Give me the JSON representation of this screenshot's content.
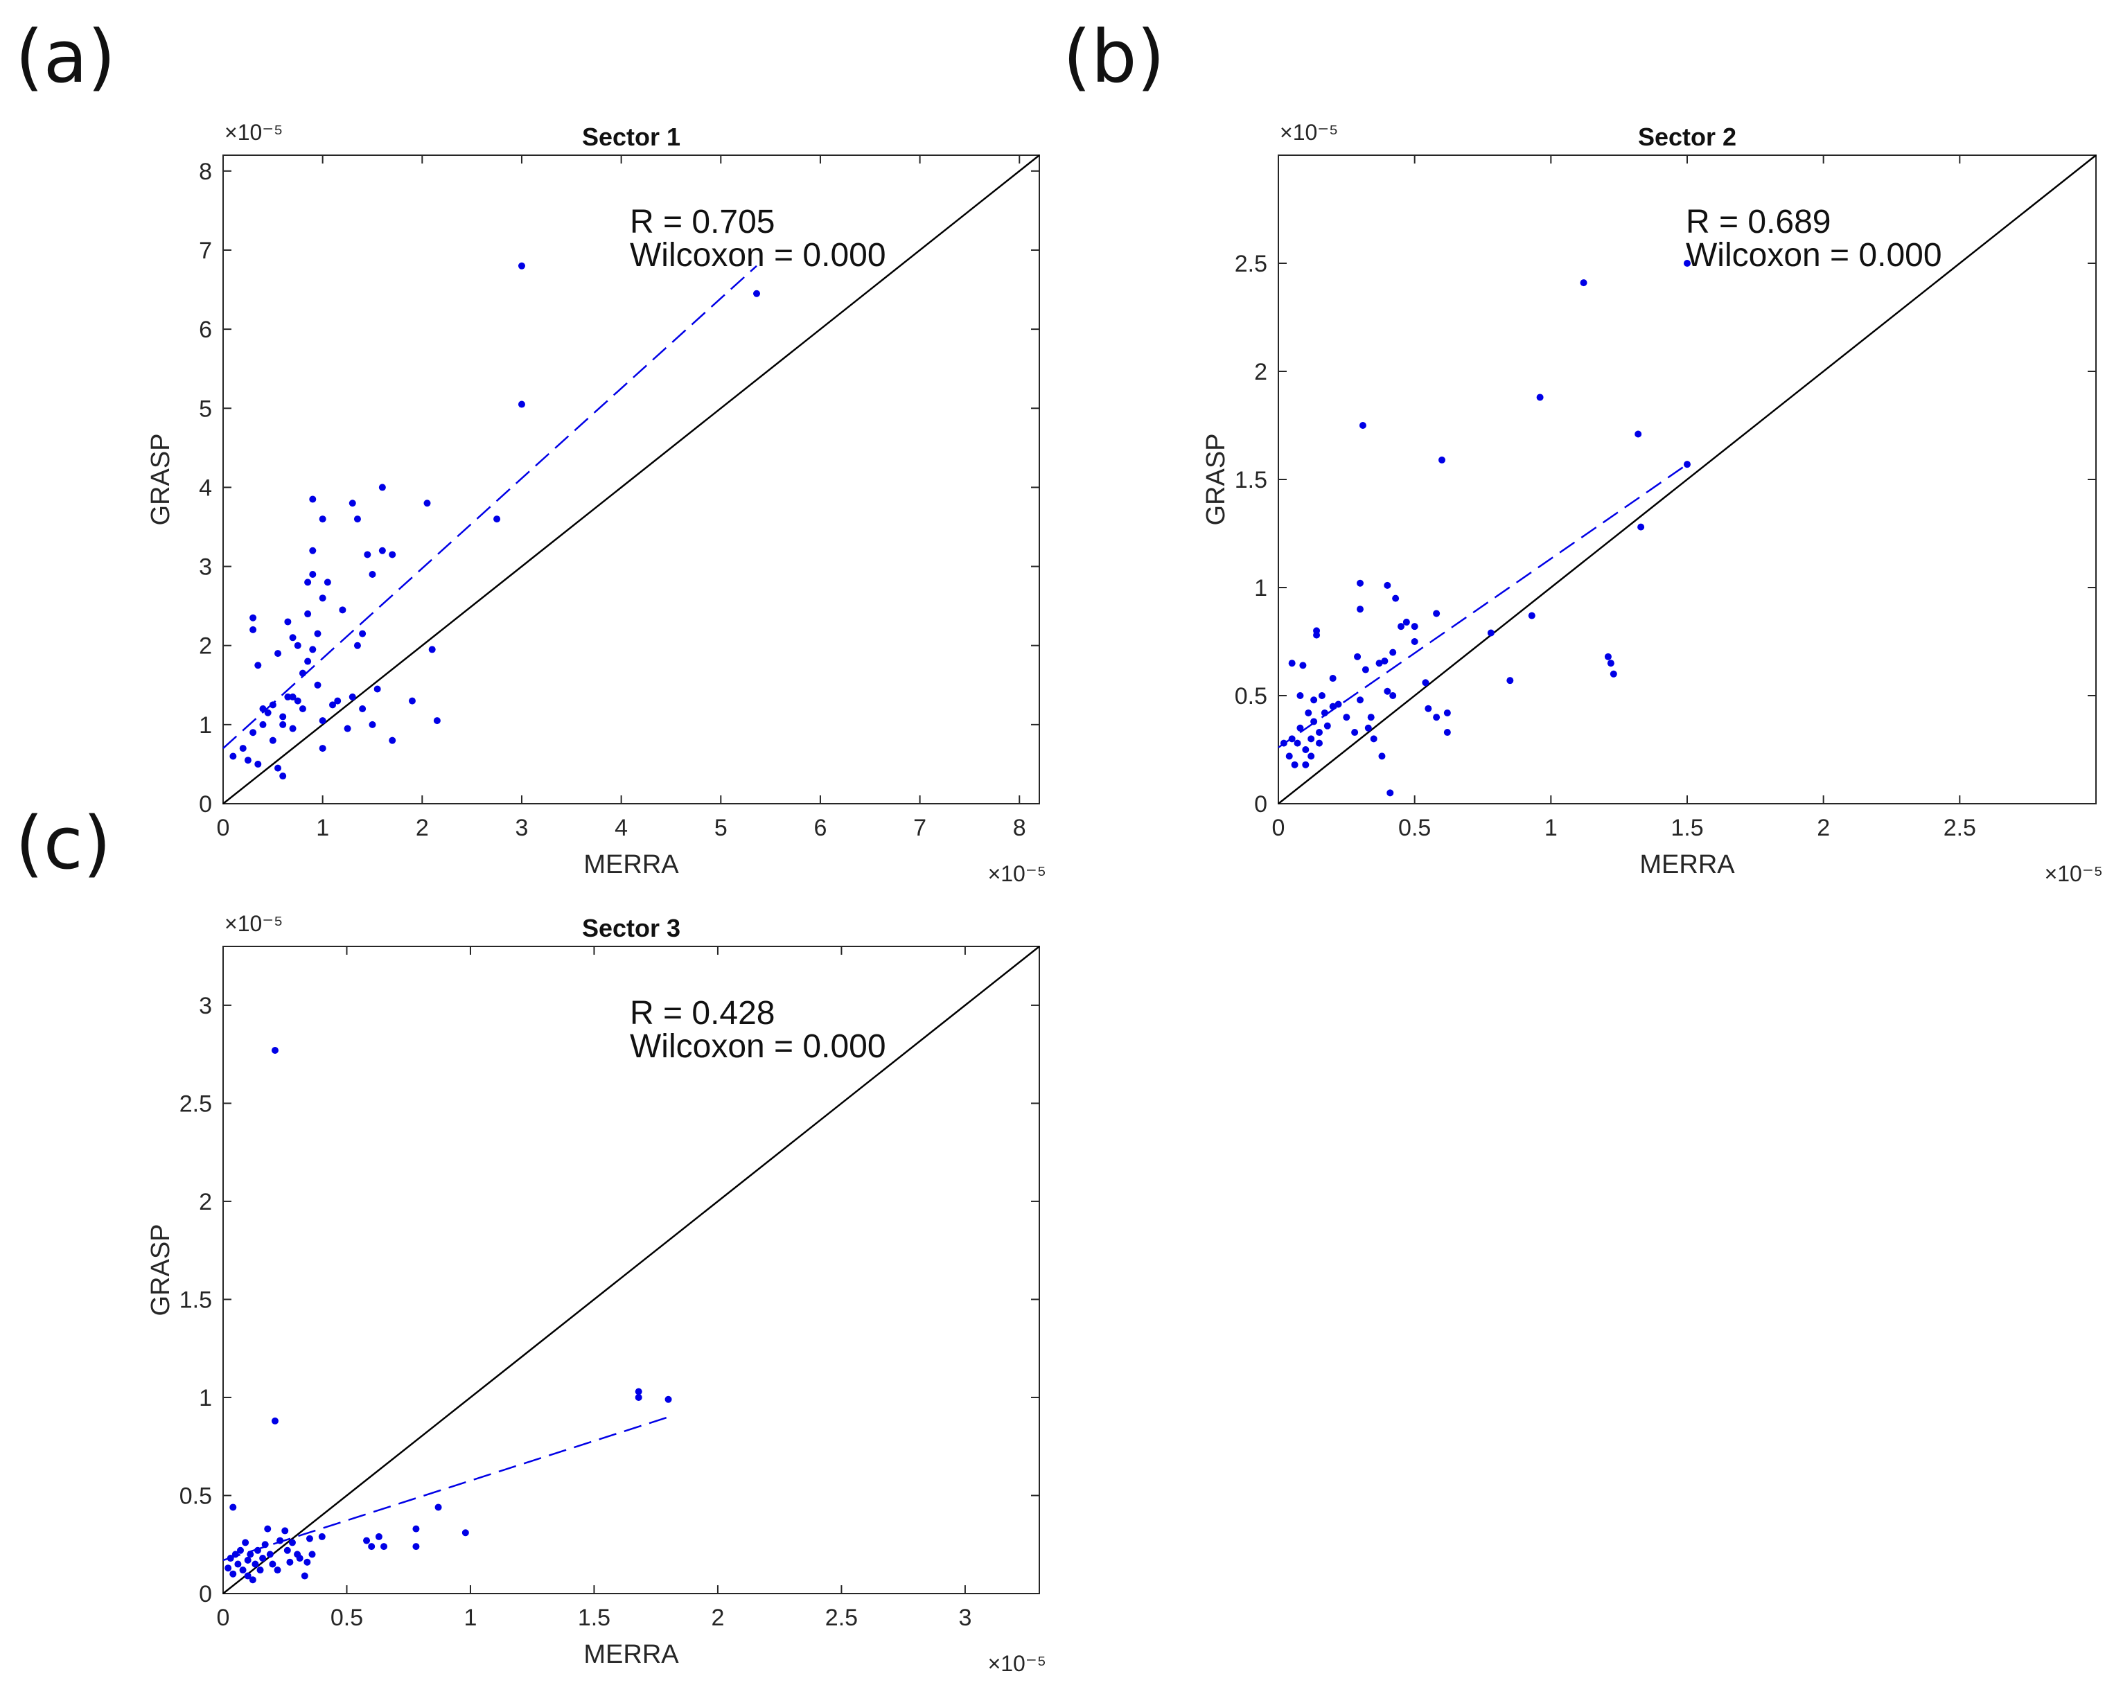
{
  "figure": {
    "panel_labels": [
      "(a)",
      "(b)",
      "(c)"
    ],
    "colors": {
      "points": "#0000e6",
      "fit": "#0000e6",
      "identity": "#000000",
      "axis": "#262626"
    }
  },
  "chart_data": [
    {
      "type": "scatter",
      "panel": "(a)",
      "title": "Sector 1",
      "xlabel": "MERRA",
      "ylabel": "GRASP",
      "xlim": [
        0,
        8.2
      ],
      "ylim": [
        0,
        8.2
      ],
      "xticks": [
        0,
        1,
        2,
        3,
        4,
        5,
        6,
        7,
        8
      ],
      "yticks": [
        0,
        1,
        2,
        3,
        4,
        5,
        6,
        7,
        8
      ],
      "xtick_labels": [
        "0",
        "1",
        "2",
        "3",
        "4",
        "5",
        "6",
        "7",
        "8"
      ],
      "ytick_labels": [
        "0",
        "1",
        "2",
        "3",
        "4",
        "5",
        "6",
        "7",
        "8"
      ],
      "x_exponent": "×10⁻⁵",
      "y_exponent": "×10⁻⁵",
      "stats": {
        "r_text": "R = 0.705",
        "wilcoxon_text": "Wilcoxon = 0.000"
      },
      "fit_line": {
        "x": [
          0,
          5.36
        ],
        "y": [
          0.7,
          6.8
        ]
      },
      "identity_line": true,
      "points": [
        [
          0.1,
          0.6
        ],
        [
          0.2,
          0.7
        ],
        [
          0.25,
          0.55
        ],
        [
          0.3,
          0.9
        ],
        [
          0.3,
          2.2
        ],
        [
          0.3,
          2.35
        ],
        [
          0.35,
          1.75
        ],
        [
          0.35,
          0.5
        ],
        [
          0.4,
          1.0
        ],
        [
          0.4,
          1.2
        ],
        [
          0.45,
          1.15
        ],
        [
          0.5,
          1.25
        ],
        [
          0.5,
          0.8
        ],
        [
          0.55,
          0.45
        ],
        [
          0.55,
          1.9
        ],
        [
          0.6,
          0.35
        ],
        [
          0.6,
          1.0
        ],
        [
          0.6,
          1.1
        ],
        [
          0.65,
          2.3
        ],
        [
          0.65,
          1.35
        ],
        [
          0.7,
          0.95
        ],
        [
          0.7,
          1.35
        ],
        [
          0.7,
          2.1
        ],
        [
          0.75,
          1.3
        ],
        [
          0.75,
          2.0
        ],
        [
          0.8,
          1.65
        ],
        [
          0.8,
          1.2
        ],
        [
          0.85,
          2.4
        ],
        [
          0.85,
          2.8
        ],
        [
          0.85,
          1.8
        ],
        [
          0.9,
          2.9
        ],
        [
          0.9,
          3.2
        ],
        [
          0.9,
          3.85
        ],
        [
          0.9,
          1.95
        ],
        [
          0.95,
          2.15
        ],
        [
          0.95,
          1.5
        ],
        [
          1.0,
          1.05
        ],
        [
          1.0,
          3.6
        ],
        [
          1.0,
          2.6
        ],
        [
          1.0,
          0.7
        ],
        [
          1.05,
          2.8
        ],
        [
          1.1,
          1.25
        ],
        [
          1.15,
          1.3
        ],
        [
          1.2,
          2.45
        ],
        [
          1.25,
          0.95
        ],
        [
          1.3,
          3.8
        ],
        [
          1.3,
          1.35
        ],
        [
          1.35,
          3.6
        ],
        [
          1.35,
          2.0
        ],
        [
          1.4,
          2.15
        ],
        [
          1.4,
          1.2
        ],
        [
          1.45,
          3.15
        ],
        [
          1.5,
          2.9
        ],
        [
          1.5,
          1.0
        ],
        [
          1.55,
          1.45
        ],
        [
          1.6,
          4.0
        ],
        [
          1.6,
          3.2
        ],
        [
          1.7,
          3.15
        ],
        [
          1.7,
          0.8
        ],
        [
          1.9,
          1.3
        ],
        [
          2.05,
          3.8
        ],
        [
          2.1,
          1.95
        ],
        [
          2.15,
          1.05
        ],
        [
          2.75,
          3.6
        ],
        [
          3.0,
          6.8
        ],
        [
          3.0,
          5.05
        ],
        [
          5.36,
          6.45
        ]
      ]
    },
    {
      "type": "scatter",
      "panel": "(b)",
      "title": "Sector 2",
      "xlabel": "MERRA",
      "ylabel": "GRASP",
      "xlim": [
        0,
        3.0
      ],
      "ylim": [
        0,
        3.0
      ],
      "xticks": [
        0,
        0.5,
        1,
        1.5,
        2,
        2.5
      ],
      "yticks": [
        0,
        0.5,
        1,
        1.5,
        2,
        2.5
      ],
      "xtick_labels": [
        "0",
        "0.5",
        "1",
        "1.5",
        "2",
        "2.5"
      ],
      "ytick_labels": [
        "0",
        "0.5",
        "1",
        "1.5",
        "2",
        "2.5"
      ],
      "x_exponent": "×10⁻⁵",
      "y_exponent": "×10⁻⁵",
      "stats": {
        "r_text": "R = 0.689",
        "wilcoxon_text": "Wilcoxon = 0.000"
      },
      "fit_line": {
        "x": [
          0,
          1.5
        ],
        "y": [
          0.26,
          1.57
        ]
      },
      "identity_line": true,
      "points": [
        [
          0.02,
          0.28
        ],
        [
          0.04,
          0.22
        ],
        [
          0.05,
          0.3
        ],
        [
          0.05,
          0.65
        ],
        [
          0.06,
          0.18
        ],
        [
          0.07,
          0.28
        ],
        [
          0.08,
          0.5
        ],
        [
          0.08,
          0.35
        ],
        [
          0.09,
          0.64
        ],
        [
          0.1,
          0.25
        ],
        [
          0.1,
          0.18
        ],
        [
          0.11,
          0.42
        ],
        [
          0.12,
          0.3
        ],
        [
          0.12,
          0.22
        ],
        [
          0.13,
          0.48
        ],
        [
          0.13,
          0.38
        ],
        [
          0.14,
          0.8
        ],
        [
          0.14,
          0.78
        ],
        [
          0.15,
          0.33
        ],
        [
          0.15,
          0.28
        ],
        [
          0.16,
          0.5
        ],
        [
          0.17,
          0.42
        ],
        [
          0.18,
          0.36
        ],
        [
          0.2,
          0.58
        ],
        [
          0.2,
          0.45
        ],
        [
          0.22,
          0.46
        ],
        [
          0.25,
          0.4
        ],
        [
          0.28,
          0.33
        ],
        [
          0.29,
          0.68
        ],
        [
          0.3,
          0.48
        ],
        [
          0.3,
          0.9
        ],
        [
          0.3,
          1.02
        ],
        [
          0.31,
          1.75
        ],
        [
          0.32,
          0.62
        ],
        [
          0.33,
          0.35
        ],
        [
          0.34,
          0.4
        ],
        [
          0.35,
          0.3
        ],
        [
          0.37,
          0.65
        ],
        [
          0.38,
          0.22
        ],
        [
          0.39,
          0.66
        ],
        [
          0.4,
          0.52
        ],
        [
          0.4,
          1.01
        ],
        [
          0.41,
          0.05
        ],
        [
          0.42,
          0.5
        ],
        [
          0.42,
          0.7
        ],
        [
          0.43,
          0.95
        ],
        [
          0.45,
          0.82
        ],
        [
          0.47,
          0.84
        ],
        [
          0.5,
          0.82
        ],
        [
          0.5,
          0.75
        ],
        [
          0.54,
          0.56
        ],
        [
          0.55,
          0.44
        ],
        [
          0.58,
          0.88
        ],
        [
          0.58,
          0.4
        ],
        [
          0.6,
          1.59
        ],
        [
          0.62,
          0.33
        ],
        [
          0.62,
          0.42
        ],
        [
          0.78,
          0.79
        ],
        [
          0.85,
          0.57
        ],
        [
          0.93,
          0.87
        ],
        [
          0.96,
          1.88
        ],
        [
          1.12,
          2.41
        ],
        [
          1.21,
          0.68
        ],
        [
          1.22,
          0.65
        ],
        [
          1.23,
          0.6
        ],
        [
          1.32,
          1.71
        ],
        [
          1.33,
          1.28
        ],
        [
          1.5,
          1.57
        ],
        [
          1.5,
          2.5
        ]
      ]
    },
    {
      "type": "scatter",
      "panel": "(c)",
      "title": "Sector 3",
      "xlabel": "MERRA",
      "ylabel": "GRASP",
      "xlim": [
        0,
        3.3
      ],
      "ylim": [
        0,
        3.3
      ],
      "xticks": [
        0,
        0.5,
        1,
        1.5,
        2,
        2.5,
        3
      ],
      "yticks": [
        0,
        0.5,
        1,
        1.5,
        2,
        2.5,
        3
      ],
      "xtick_labels": [
        "0",
        "0.5",
        "1",
        "1.5",
        "2",
        "2.5",
        "3"
      ],
      "ytick_labels": [
        "0",
        "0.5",
        "1",
        "1.5",
        "2",
        "2.5",
        "3"
      ],
      "x_exponent": "×10⁻⁵",
      "y_exponent": "×10⁻⁵",
      "stats": {
        "r_text": "R = 0.428",
        "wilcoxon_text": "Wilcoxon = 0.000"
      },
      "fit_line": {
        "x": [
          0,
          1.8
        ],
        "y": [
          0.17,
          0.9
        ]
      },
      "identity_line": true,
      "points": [
        [
          0.02,
          0.13
        ],
        [
          0.03,
          0.18
        ],
        [
          0.04,
          0.44
        ],
        [
          0.04,
          0.1
        ],
        [
          0.05,
          0.2
        ],
        [
          0.06,
          0.15
        ],
        [
          0.07,
          0.22
        ],
        [
          0.08,
          0.12
        ],
        [
          0.09,
          0.26
        ],
        [
          0.1,
          0.17
        ],
        [
          0.1,
          0.09
        ],
        [
          0.11,
          0.2
        ],
        [
          0.12,
          0.07
        ],
        [
          0.13,
          0.15
        ],
        [
          0.14,
          0.22
        ],
        [
          0.15,
          0.12
        ],
        [
          0.16,
          0.18
        ],
        [
          0.17,
          0.25
        ],
        [
          0.18,
          0.33
        ],
        [
          0.19,
          0.2
        ],
        [
          0.2,
          0.15
        ],
        [
          0.21,
          0.88
        ],
        [
          0.21,
          2.77
        ],
        [
          0.22,
          0.12
        ],
        [
          0.23,
          0.27
        ],
        [
          0.25,
          0.32
        ],
        [
          0.26,
          0.22
        ],
        [
          0.27,
          0.16
        ],
        [
          0.28,
          0.26
        ],
        [
          0.3,
          0.2
        ],
        [
          0.31,
          0.18
        ],
        [
          0.33,
          0.09
        ],
        [
          0.34,
          0.16
        ],
        [
          0.35,
          0.28
        ],
        [
          0.36,
          0.2
        ],
        [
          0.4,
          0.29
        ],
        [
          0.58,
          0.27
        ],
        [
          0.6,
          0.24
        ],
        [
          0.63,
          0.29
        ],
        [
          0.65,
          0.24
        ],
        [
          0.78,
          0.33
        ],
        [
          0.78,
          0.24
        ],
        [
          0.87,
          0.44
        ],
        [
          0.98,
          0.31
        ],
        [
          1.68,
          1.03
        ],
        [
          1.68,
          1.0
        ],
        [
          1.8,
          0.99
        ]
      ]
    }
  ]
}
